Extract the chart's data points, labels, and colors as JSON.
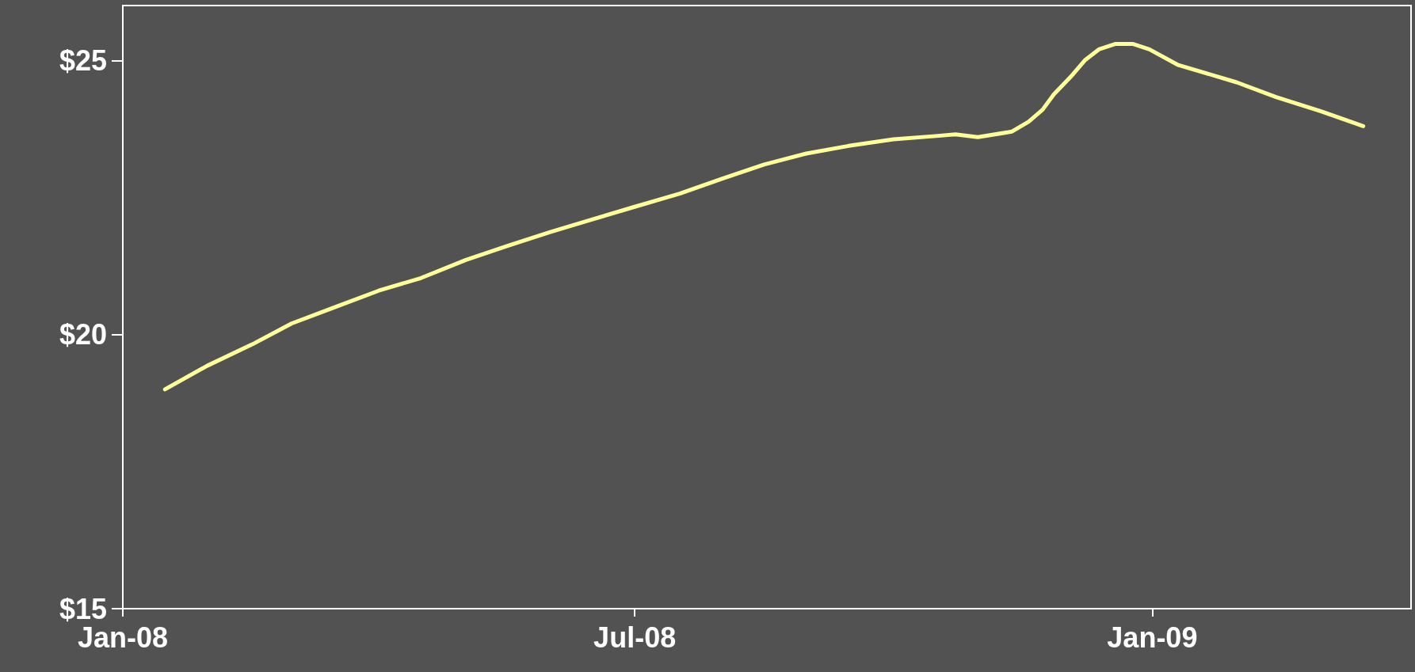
{
  "chart_data": {
    "type": "line",
    "x": [
      "2008-01-16",
      "2008-01-31",
      "2008-02-16",
      "2008-03-01",
      "2008-03-16",
      "2008-04-01",
      "2008-04-16",
      "2008-05-02",
      "2008-05-17",
      "2008-06-01",
      "2008-06-16",
      "2008-07-01",
      "2008-07-17",
      "2008-08-01",
      "2008-08-16",
      "2008-08-31",
      "2008-09-15",
      "2008-10-01",
      "2008-10-16",
      "2008-10-23",
      "2008-10-31",
      "2008-11-12",
      "2008-11-18",
      "2008-11-23",
      "2008-11-27",
      "2008-12-03",
      "2008-12-08",
      "2008-12-13",
      "2008-12-19",
      "2008-12-25",
      "2008-12-31",
      "2009-01-10",
      "2009-01-31",
      "2009-02-14",
      "2009-03-02",
      "2009-03-17"
    ],
    "series": [
      {
        "color": "#ffff99",
        "values": [
          19.0,
          19.43,
          19.82,
          20.2,
          20.49,
          20.8,
          21.03,
          21.36,
          21.62,
          21.87,
          22.1,
          22.33,
          22.57,
          22.84,
          23.1,
          23.3,
          23.44,
          23.56,
          23.62,
          23.65,
          23.6,
          23.7,
          23.88,
          24.1,
          24.38,
          24.7,
          25.0,
          25.2,
          25.3,
          25.3,
          25.2,
          24.92,
          24.6,
          24.33,
          24.07,
          23.8
        ]
      }
    ],
    "xlim": [
      "2008-01-01",
      "2009-04-03"
    ],
    "xticks": [
      {
        "value": "2008-01-01",
        "label": "Jan-08"
      },
      {
        "value": "2008-07-01",
        "label": "Jul-08"
      },
      {
        "value": "2009-01-01",
        "label": "Jan-09"
      }
    ],
    "ylim": [
      15,
      26
    ],
    "yticks": [
      {
        "value": 15,
        "label": "$15"
      },
      {
        "value": 20,
        "label": "$20"
      },
      {
        "value": 25,
        "label": "$25"
      }
    ],
    "grid": false,
    "marker": "none",
    "line_style": "solid"
  }
}
